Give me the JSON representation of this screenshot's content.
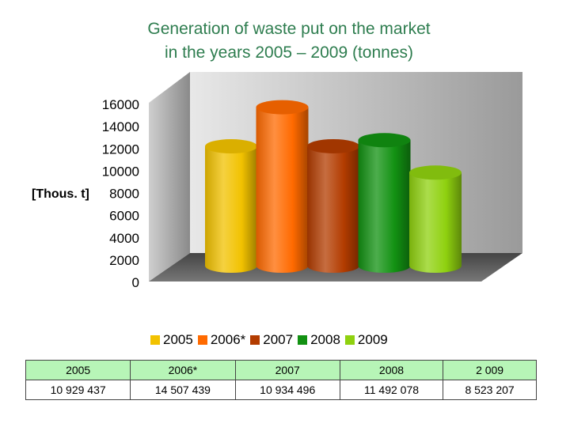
{
  "title_line1": "Generation of waste put on the market",
  "title_line2": "in the years 2005 – 2009 (tonnes)",
  "chart_data": {
    "type": "bar",
    "title": "Generation of waste put on the market in the years 2005 – 2009 (tonnes)",
    "ylabel": "[Thous. t]",
    "ylim": [
      0,
      16000
    ],
    "yticks": [
      "0",
      "2000",
      "4000",
      "6000",
      "8000",
      "10000",
      "12000",
      "14000",
      "16000"
    ],
    "grid": false,
    "legend_position": "bottom",
    "three_d": true,
    "categories": [
      "2005",
      "2006*",
      "2007",
      "2008",
      "2009"
    ],
    "values": [
      10929.437,
      14507.439,
      10934.496,
      11492.078,
      8523.207
    ],
    "colors": [
      "#f2c200",
      "#ff6a00",
      "#b33c00",
      "#129112",
      "#8fd10f"
    ]
  },
  "legend": [
    "2005",
    "2006*",
    "2007",
    "2008",
    "2009"
  ],
  "table": {
    "header": [
      "2005",
      "2006*",
      "2007",
      "2008",
      "2 009"
    ],
    "row": [
      "10 929 437",
      "14 507 439",
      "10 934 496",
      "11 492 078",
      "8 523 207"
    ]
  }
}
